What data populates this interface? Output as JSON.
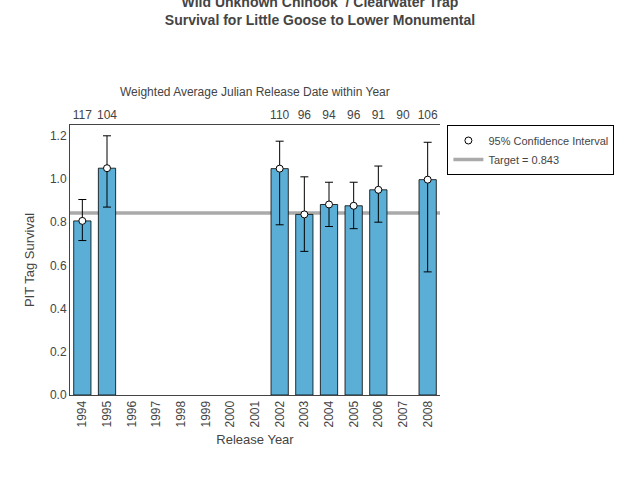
{
  "chart_data": {
    "type": "bar",
    "title": [
      "Wild Unknown Chinook  / Clearwater Trap",
      "Survival for Little Goose to Lower Monumental"
    ],
    "subtitle": "Weighted Average Julian Release Date within Year",
    "xlabel": "Release Year",
    "ylabel": "PIT Tag Survival",
    "categories": [
      "1994",
      "1995",
      "1996",
      "1997",
      "1998",
      "1999",
      "2000",
      "2001",
      "2002",
      "2003",
      "2004",
      "2005",
      "2006",
      "2007",
      "2008"
    ],
    "values": [
      0.806,
      1.05,
      null,
      null,
      null,
      null,
      null,
      null,
      1.048,
      0.836,
      0.882,
      0.876,
      0.95,
      null,
      0.997
    ],
    "ci_low": [
      0.715,
      0.87,
      null,
      null,
      null,
      null,
      null,
      null,
      0.788,
      0.665,
      0.78,
      0.77,
      0.8,
      null,
      0.57
    ],
    "ci_high": [
      0.905,
      1.2,
      null,
      null,
      null,
      null,
      null,
      null,
      1.175,
      1.01,
      0.985,
      0.985,
      1.06,
      null,
      1.17
    ],
    "ci_name": "95% Confidence Interval",
    "julian_dates": [
      "117",
      "104",
      null,
      null,
      null,
      null,
      null,
      null,
      "110",
      "96",
      "94",
      "96",
      "91",
      "90",
      "106"
    ],
    "target_line": {
      "value": 0.843,
      "name": "Target = 0.843",
      "color": "#aaaaaa"
    },
    "color": "#5bafd6",
    "edge_color": "#000000",
    "error_color": "#000000",
    "marker_color": "#ffffff",
    "marker": "circle",
    "background_color": "#ffffff",
    "ylim": [
      0,
      1.25
    ],
    "yticks": [
      {
        "value": 0,
        "label": "0.0"
      },
      0.2,
      0.4,
      0.6,
      0.8,
      {
        "value": 1,
        "label": "1.0"
      },
      1.2
    ],
    "grid": false,
    "legend": "upper right"
  }
}
